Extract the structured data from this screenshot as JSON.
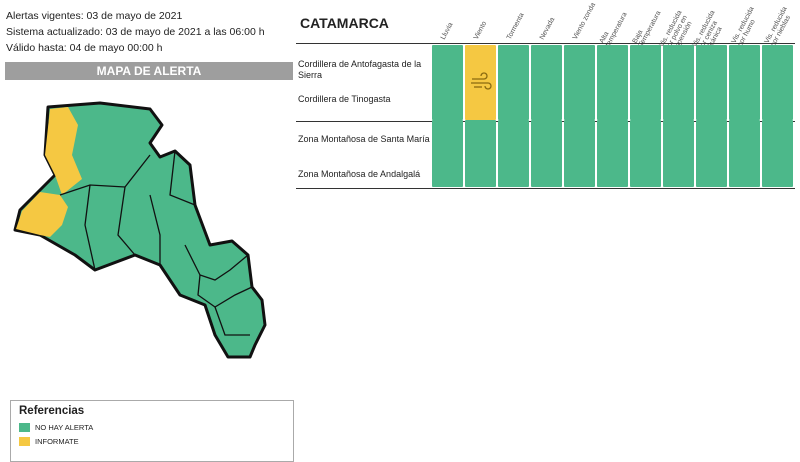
{
  "header": {
    "lines": [
      "Alertas vigentes: 03 de mayo de 2021",
      "Sistema actualizado: 03 de mayo de 2021 a las 06:00 h",
      "Válido hasta: 04 de mayo 00:00 h"
    ]
  },
  "map": {
    "title": "MAPA DE ALERTA"
  },
  "table": {
    "province": "CATAMARCA",
    "columns": [
      "Lluvia",
      "Viento",
      "Tormenta",
      "Nevada",
      "Viento zonda",
      "Alta temperatura",
      "Baja Temperatura",
      "Vis. reducida por polvo en suspensión",
      "Vis. reducida por ceniza volcánica",
      "Vis. reducida por humo",
      "Vis. reducida por nieblas"
    ],
    "groups": [
      {
        "zones": [
          "Cordillera de Antofagasta de la Sierra",
          "Cordillera de Tinogasta"
        ],
        "cells": [
          "#4cb88a",
          "#f5c842",
          "#4cb88a",
          "#4cb88a",
          "#4cb88a",
          "#4cb88a",
          "#4cb88a",
          "#4cb88a",
          "#4cb88a",
          "#4cb88a",
          "#4cb88a"
        ]
      },
      {
        "zones": [
          "Zona Montañosa de Santa María",
          "Zona Montañosa de Andalgalá"
        ],
        "cells": [
          "#4cb88a",
          "#4cb88a",
          "#4cb88a",
          "#4cb88a",
          "#4cb88a",
          "#4cb88a",
          "#4cb88a",
          "#4cb88a",
          "#4cb88a",
          "#4cb88a",
          "#4cb88a"
        ]
      }
    ]
  },
  "legend": {
    "title": "Referencias",
    "items": [
      {
        "label": "NO HAY ALERTA",
        "color": "#4cb88a"
      },
      {
        "label": "INFORMATE",
        "color": "#f5c842"
      }
    ]
  }
}
